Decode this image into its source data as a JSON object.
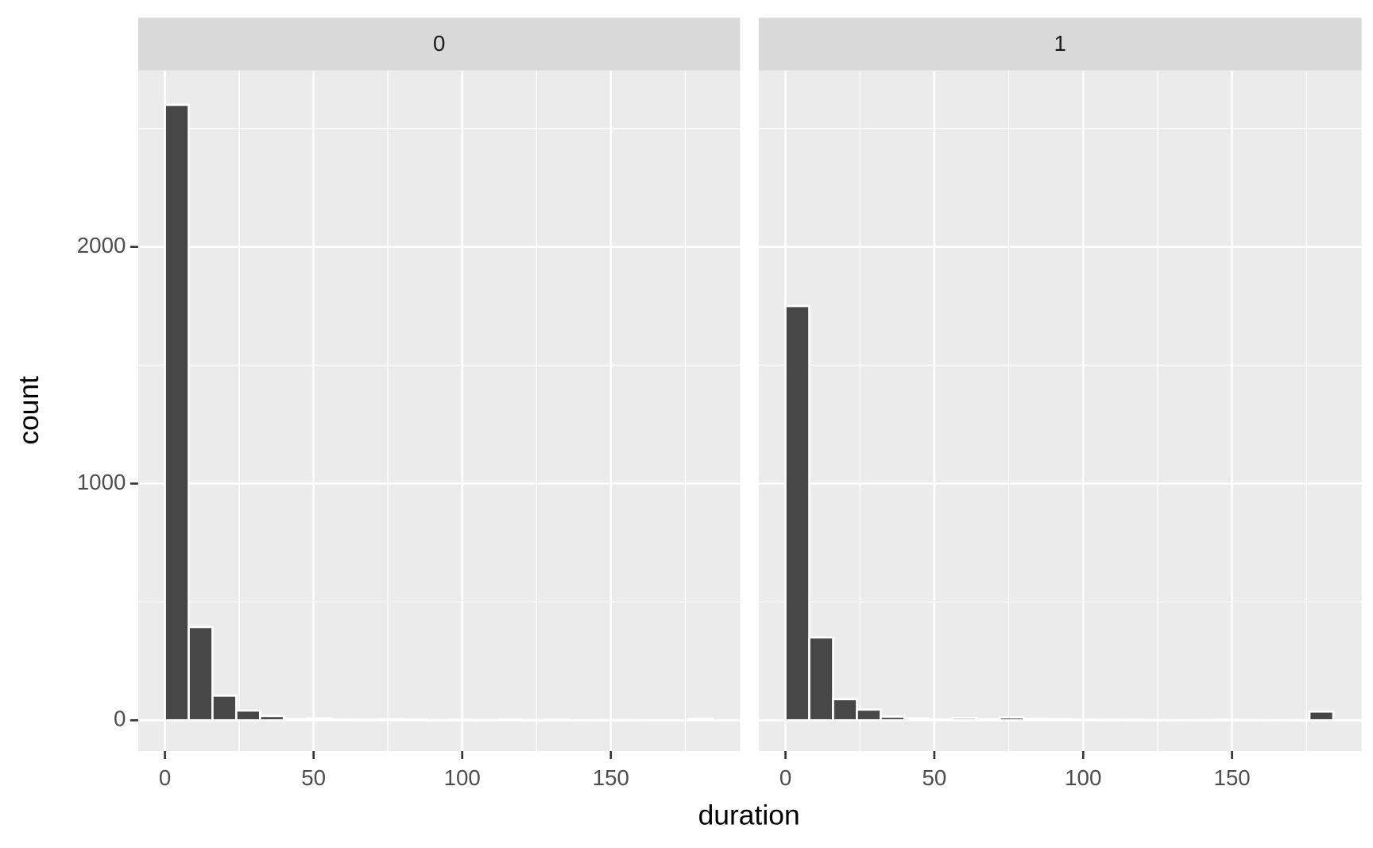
{
  "chart_data": [
    {
      "type": "histogram",
      "title": "0",
      "xlabel": "duration",
      "ylabel": "count",
      "bins": [
        0,
        8,
        16,
        24,
        32,
        40,
        48,
        56,
        64,
        72,
        80,
        88,
        96,
        104,
        112,
        120,
        128,
        136,
        144,
        152,
        160,
        168,
        176,
        184
      ],
      "values": [
        2600,
        394,
        104,
        41,
        18,
        5,
        8,
        3,
        2,
        4,
        3,
        1,
        2,
        1,
        3,
        1,
        2,
        0,
        1,
        1,
        0,
        0,
        6
      ],
      "color": "#474747",
      "xlim": [
        -9,
        193.5
      ],
      "ylim": [
        -130,
        2745
      ],
      "xticks": [
        0,
        50,
        100,
        150
      ],
      "yticks": [
        0,
        1000,
        2000
      ],
      "minor_xticks": [
        25,
        75,
        125,
        175
      ],
      "minor_yticks": [
        500,
        1500,
        2500
      ],
      "grid": true
    },
    {
      "type": "histogram",
      "title": "1",
      "bins": [
        0,
        8,
        16,
        24,
        32,
        40,
        48,
        56,
        64,
        72,
        80,
        88,
        96,
        104,
        112,
        120,
        128,
        136,
        144,
        152,
        160,
        168,
        176,
        184
      ],
      "values": [
        1750,
        350,
        89,
        45,
        15,
        8,
        3,
        10,
        4,
        12,
        6,
        5,
        3,
        2,
        2,
        1,
        0,
        1,
        2,
        1,
        0,
        1,
        37
      ],
      "color": "#474747",
      "xlim": [
        -9,
        193.5
      ],
      "ylim": [
        -130,
        2745
      ],
      "xticks": [
        0,
        50,
        100,
        150
      ],
      "minor_xticks": [
        25,
        75,
        125,
        175
      ],
      "minor_yticks": [
        500,
        1500,
        2500
      ],
      "grid": true
    }
  ]
}
